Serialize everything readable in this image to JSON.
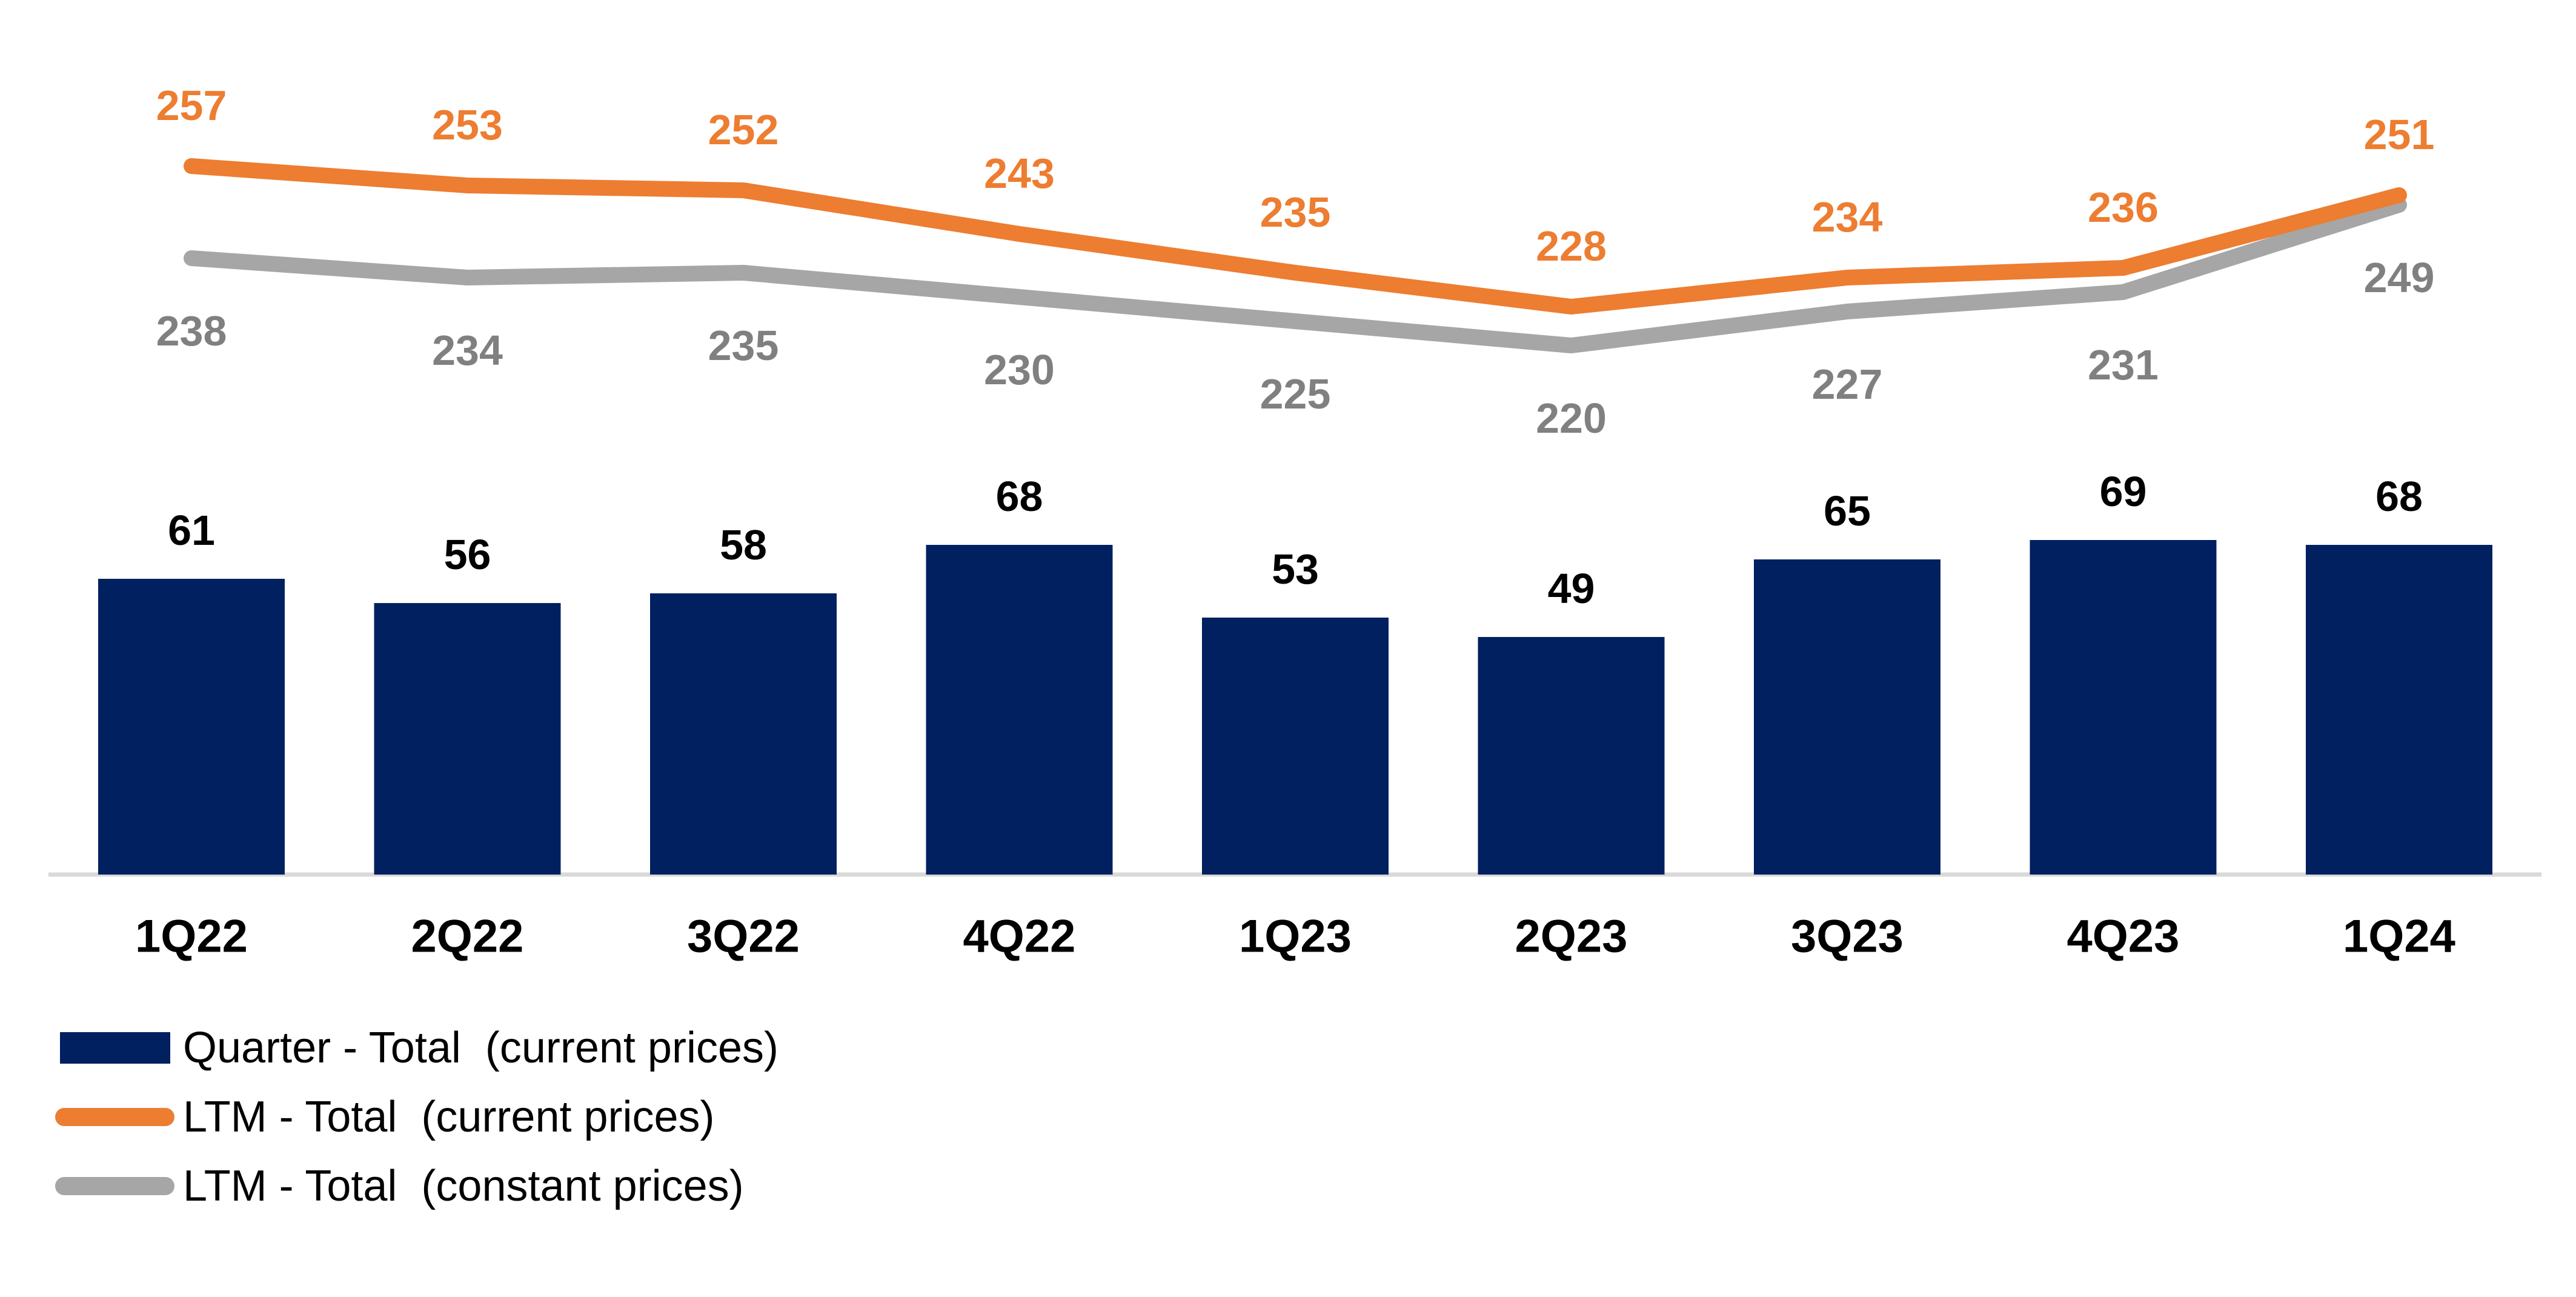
{
  "colors": {
    "bar": "#002060",
    "ltm_current": "#ED7D31",
    "ltm_constant": "#A6A6A6",
    "bar_label": "#000000",
    "ltm_current_label": "#ED7D31",
    "ltm_constant_label": "#808080",
    "x_axis_label": "#000000",
    "axis_line": "#D9D9D9",
    "legend_text": "#000000",
    "background": "#FFFFFF"
  },
  "chart_data": {
    "type": "bar",
    "subtype": "combo-bar-and-lines",
    "categories": [
      "1Q22",
      "2Q22",
      "3Q22",
      "4Q22",
      "1Q23",
      "2Q23",
      "3Q23",
      "4Q23",
      "1Q24"
    ],
    "series": [
      {
        "name": "Quarter - Total  (current prices)",
        "type": "bar",
        "color": "#002060",
        "values": [
          61,
          56,
          58,
          68,
          53,
          49,
          65,
          69,
          68
        ]
      },
      {
        "name": "LTM - Total  (current prices)",
        "type": "line",
        "color": "#ED7D31",
        "values": [
          257,
          253,
          252,
          243,
          235,
          228,
          234,
          236,
          251
        ]
      },
      {
        "name": "LTM - Total  (constant prices)",
        "type": "line",
        "color": "#A6A6A6",
        "values": [
          238,
          234,
          235,
          230,
          225,
          220,
          227,
          231,
          249
        ]
      }
    ],
    "title": "",
    "xlabel": "",
    "ylabel": "",
    "value_axis_visible": false,
    "gridlines": false,
    "data_labels": true,
    "legend_position": "bottom-left"
  },
  "legend": {
    "items": [
      {
        "label": "Quarter - Total  (current prices)",
        "swatch": "rect",
        "color": "#002060"
      },
      {
        "label": "LTM - Total  (current prices)",
        "swatch": "line",
        "color": "#ED7D31"
      },
      {
        "label": "LTM - Total  (constant prices)",
        "swatch": "line",
        "color": "#A6A6A6"
      }
    ]
  }
}
